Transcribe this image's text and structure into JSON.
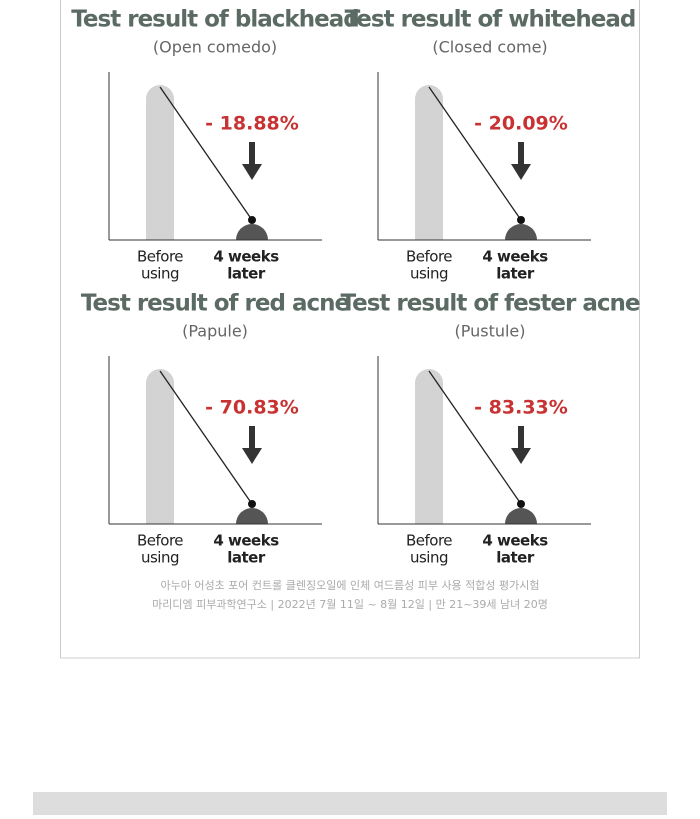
{
  "panels": [
    {
      "title": "Test result of blackhead",
      "subtitle": "(Open comedo)",
      "change": "- 18.88%",
      "before_label": [
        "Before",
        "using"
      ],
      "after_label": [
        "4 weeks",
        "later"
      ]
    },
    {
      "title": "Test result of whitehead",
      "subtitle": "(Closed come)",
      "change": "- 20.09%",
      "before_label": [
        "Before",
        "using"
      ],
      "after_label": [
        "4 weeks",
        "later"
      ]
    },
    {
      "title": "Test result of red acne",
      "subtitle": "(Papule)",
      "change": "- 70.83%",
      "before_label": [
        "Before",
        "using"
      ],
      "after_label": [
        "4 weeks",
        "later"
      ]
    },
    {
      "title": "Test result of fester acne",
      "subtitle": "(Pustule)",
      "change": "- 83.33%",
      "before_label": [
        "Before",
        "using"
      ],
      "after_label": [
        "4 weeks",
        "later"
      ]
    }
  ],
  "footnote": [
    "아누아 어성초 포어 컨트롤 클렌징오일에 인체 여드름성 피부 사용 적합성 평가시험",
    "마리디엠 피부과학연구소 | 2022년 7월 11일 ~ 8월 12일 | 만 21~39세 남녀 20명"
  ]
}
